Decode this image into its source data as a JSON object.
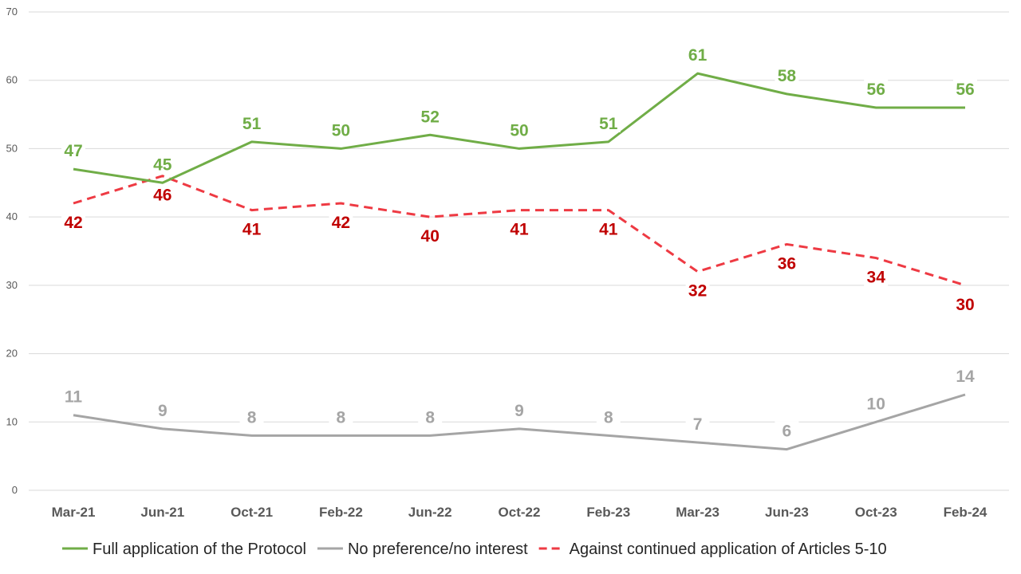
{
  "chart_data": {
    "type": "line",
    "categories": [
      "Mar-21",
      "Jun-21",
      "Oct-21",
      "Feb-22",
      "Jun-22",
      "Oct-22",
      "Feb-23",
      "Mar-23",
      "Jun-23",
      "Oct-23",
      "Feb-24"
    ],
    "ylim": [
      0,
      70
    ],
    "yticks": [
      0,
      10,
      20,
      30,
      40,
      50,
      60,
      70
    ],
    "grid": true,
    "legend_position": "bottom",
    "series": [
      {
        "name": "Full application of the Protocol",
        "color": "#70ad47",
        "dash": "solid",
        "values": [
          47,
          45,
          51,
          50,
          52,
          50,
          51,
          61,
          58,
          56,
          56
        ],
        "label_position": "above"
      },
      {
        "name": "No preference/no interest",
        "color": "#a5a5a5",
        "dash": "solid",
        "values": [
          11,
          9,
          8,
          8,
          8,
          9,
          8,
          7,
          6,
          10,
          14
        ],
        "label_position": "above"
      },
      {
        "name": "Against continued application of Articles 5-10",
        "color": "#ee3a43",
        "label_color": "#c00000",
        "dash": "dashed",
        "values": [
          42,
          46,
          41,
          42,
          40,
          41,
          41,
          32,
          36,
          34,
          30
        ],
        "label_position": "below"
      }
    ]
  }
}
